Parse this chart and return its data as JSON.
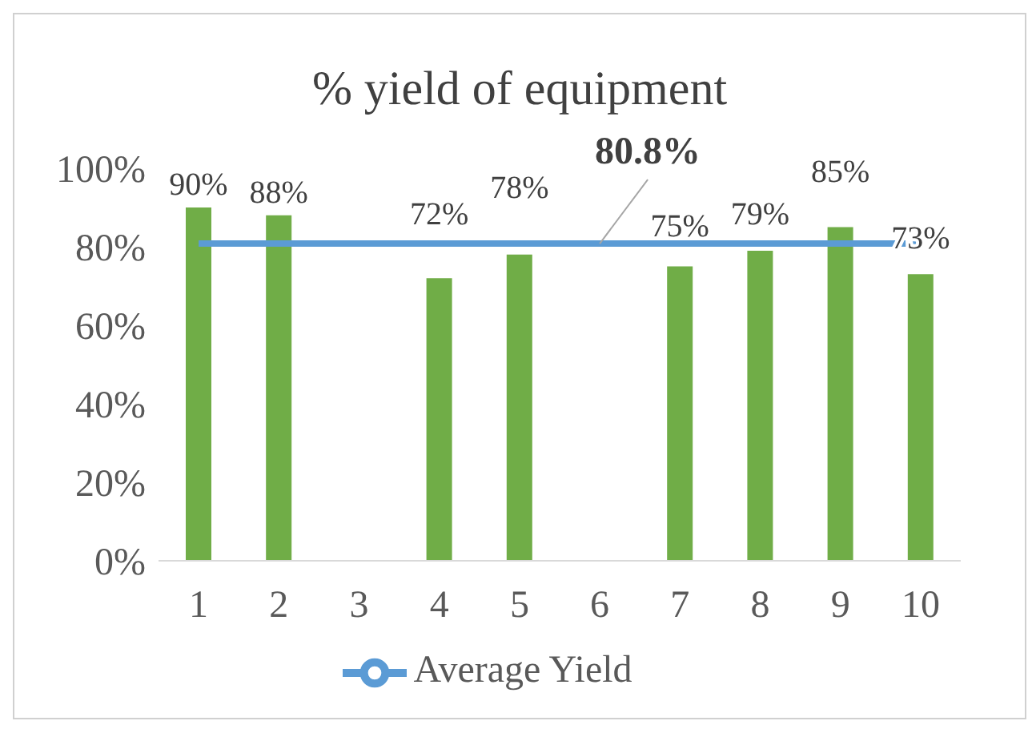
{
  "chart_data": {
    "type": "bar",
    "title": "% yield of equipment",
    "categories": [
      "1",
      "2",
      "3",
      "4",
      "5",
      "6",
      "7",
      "8",
      "9",
      "10"
    ],
    "series": [
      {
        "color": "#70ad47",
        "values": [
          90,
          88,
          null,
          72,
          78,
          null,
          75,
          79,
          85,
          73
        ],
        "value_labels": [
          "90%",
          "88%",
          null,
          "72%",
          "78%",
          null,
          "75%",
          "79%",
          "85%",
          "73%"
        ]
      },
      {
        "type": "line",
        "name": "Average Yield",
        "color": "#5b9bd5",
        "values": [
          80.8,
          80.8,
          80.8,
          80.8,
          80.8,
          80.8,
          80.8,
          80.8,
          80.8,
          80.8
        ],
        "marker": "none"
      }
    ],
    "ylim": [
      0,
      100
    ],
    "yticks": [
      {
        "value": 0,
        "label": "0%"
      },
      {
        "value": 20,
        "label": "20%"
      },
      {
        "value": 40,
        "label": "40%"
      },
      {
        "value": 60,
        "label": "60%"
      },
      {
        "value": 80,
        "label": "80%"
      },
      {
        "value": 100,
        "label": "100%"
      }
    ],
    "annotations": [
      {
        "text": "80.8%",
        "x": "6",
        "y": 80.8
      }
    ],
    "grid": false,
    "legend": "bottom"
  }
}
